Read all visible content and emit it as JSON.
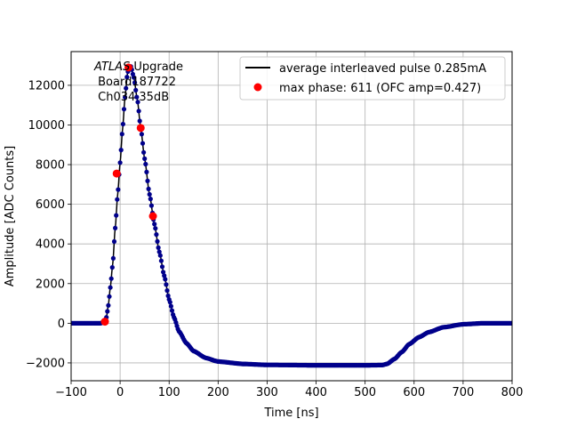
{
  "chart_data": {
    "type": "scatter",
    "xlabel": "Time [ns]",
    "ylabel": "Amplitude [ADC Counts]",
    "xlim": [
      -100,
      800
    ],
    "ylim": [
      -2900,
      13700
    ],
    "xticks": [
      -100,
      0,
      100,
      200,
      300,
      400,
      500,
      600,
      700,
      800
    ],
    "yticks": [
      -2000,
      0,
      2000,
      4000,
      6000,
      8000,
      10000,
      12000
    ],
    "grid": true,
    "legend_position": "top-right",
    "annotation": {
      "line1_italic": "ATLAS",
      "line1_rest": " Upgrade",
      "line2": " Board187722",
      "line3": " Ch034 35dB"
    },
    "series": [
      {
        "name": "average interleaved pulse 0.285mA",
        "type": "line+markers",
        "line_color": "#000000",
        "marker_color": "#00008b",
        "points": [
          [
            -100,
            0
          ],
          [
            -40,
            0
          ],
          [
            -32,
            80
          ],
          [
            -28,
            300
          ],
          [
            -24,
            900
          ],
          [
            -20,
            1800
          ],
          [
            -15,
            3000
          ],
          [
            -10,
            4800
          ],
          [
            -5,
            6500
          ],
          [
            0,
            8100
          ],
          [
            5,
            9800
          ],
          [
            10,
            11400
          ],
          [
            15,
            12600
          ],
          [
            18,
            12900
          ],
          [
            22,
            12950
          ],
          [
            28,
            12400
          ],
          [
            35,
            11300
          ],
          [
            42,
            9850
          ],
          [
            50,
            8300
          ],
          [
            60,
            6500
          ],
          [
            70,
            5000
          ],
          [
            80,
            3600
          ],
          [
            90,
            2400
          ],
          [
            100,
            1200
          ],
          [
            110,
            300
          ],
          [
            120,
            -400
          ],
          [
            135,
            -1000
          ],
          [
            150,
            -1400
          ],
          [
            175,
            -1750
          ],
          [
            200,
            -1930
          ],
          [
            250,
            -2050
          ],
          [
            300,
            -2100
          ],
          [
            400,
            -2120
          ],
          [
            500,
            -2120
          ],
          [
            535,
            -2110
          ],
          [
            545,
            -2050
          ],
          [
            560,
            -1800
          ],
          [
            575,
            -1450
          ],
          [
            590,
            -1050
          ],
          [
            610,
            -700
          ],
          [
            630,
            -450
          ],
          [
            660,
            -200
          ],
          [
            700,
            -50
          ],
          [
            740,
            0
          ],
          [
            800,
            0
          ]
        ]
      },
      {
        "name": "max phase: 611 (OFC amp=0.427)",
        "type": "scatter",
        "color": "#ff0000",
        "points": [
          [
            -31,
            80
          ],
          [
            -7,
            7550
          ],
          [
            17,
            12900
          ],
          [
            42,
            9850
          ],
          [
            67,
            5400
          ]
        ]
      }
    ]
  }
}
